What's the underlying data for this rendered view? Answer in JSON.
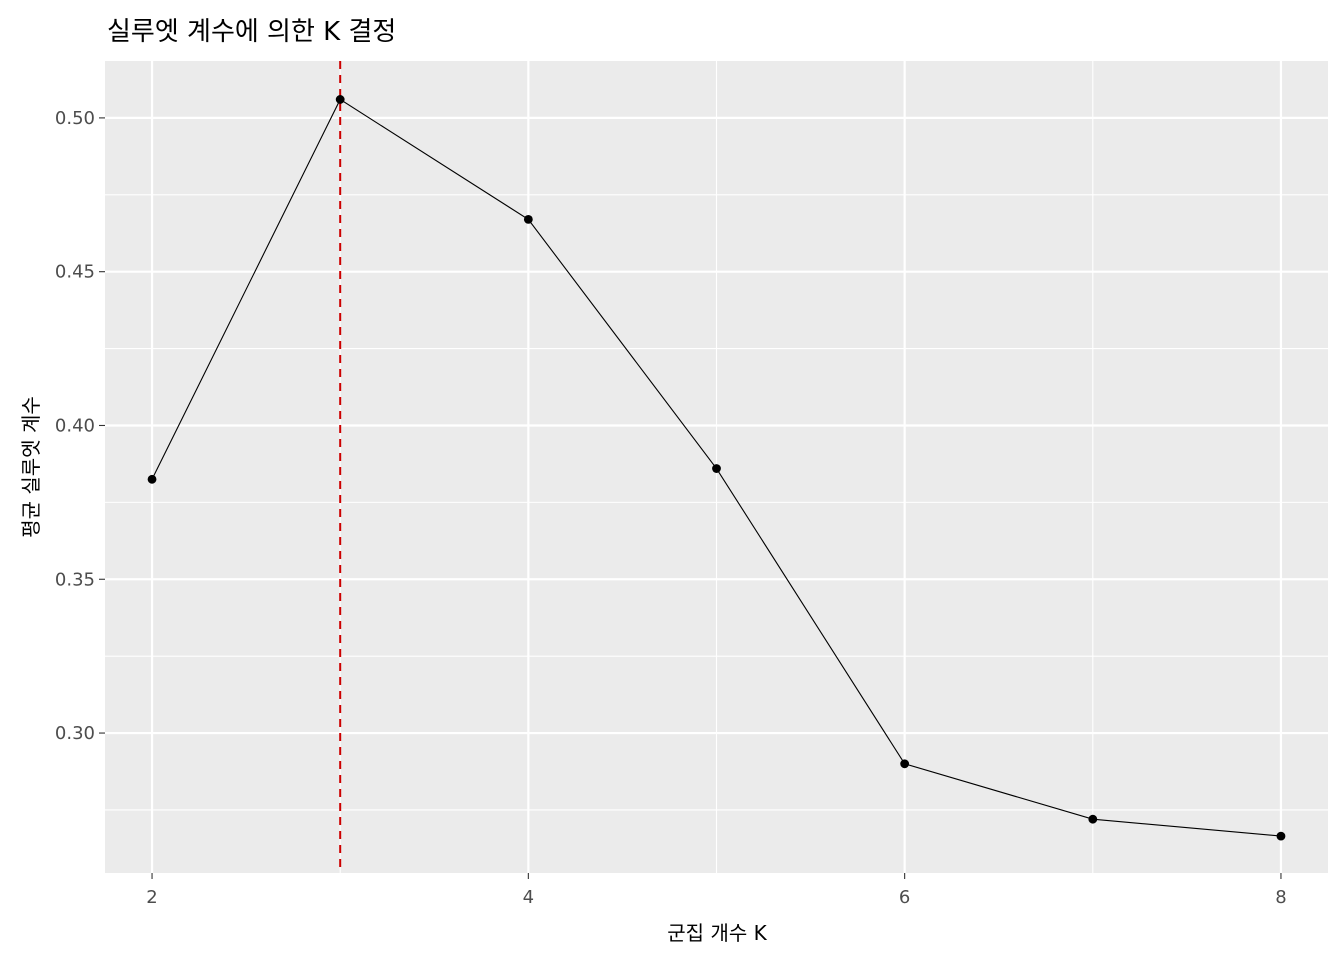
{
  "chart_data": {
    "type": "line",
    "title": "실루엣 계수에 의한 K 결정",
    "xlabel": "군집 개수 K",
    "ylabel": "평균 실루엣 계수",
    "x": [
      2,
      3,
      4,
      5,
      6,
      7,
      8
    ],
    "series": [
      {
        "values": [
          0.3825,
          0.506,
          0.467,
          0.386,
          0.29,
          0.272,
          0.2665
        ]
      }
    ],
    "xlim": [
      1.75,
      8.25
    ],
    "ylim": [
      0.2545,
      0.5185
    ],
    "xticks": [
      2,
      4,
      6,
      8
    ],
    "xtick_labels": [
      "2",
      "4",
      "6",
      "8"
    ],
    "yticks": [
      0.3,
      0.35,
      0.4,
      0.45,
      0.5
    ],
    "ytick_labels": [
      "0.30",
      "0.35",
      "0.40",
      "0.45",
      "0.50"
    ],
    "reference_line": {
      "orientation": "vertical",
      "x": 3,
      "style": "dashed",
      "color": "#cc0000"
    },
    "grid": true,
    "legend": "none",
    "colors": {
      "panel_background": "#ebebeb",
      "gridline": "#ffffff",
      "line": "#000000",
      "point": "#000000"
    }
  }
}
